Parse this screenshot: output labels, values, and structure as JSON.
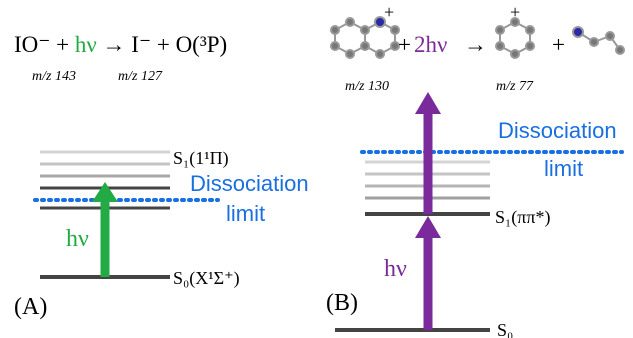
{
  "panel_a": {
    "equation": {
      "reactant": "IO⁻ + ",
      "photon": "hν",
      "products": " → I⁻ + O(³P)"
    },
    "reactant_mz": "m/z 143",
    "product_mz": "m/z 127",
    "excited_state": "S₁(1¹Π)",
    "dissociation": [
      "Dissociation",
      "limit"
    ],
    "photon_label": "hν",
    "ground_state": "S₀(X¹Σ⁺)",
    "panel_label": "(A)"
  },
  "panel_b": {
    "charge_1": "+",
    "plus_1": "+",
    "photons": "2hν",
    "arrow": "→",
    "charge_2": "+",
    "plus_2": "+",
    "reactant_mz": "m/z 130",
    "product_mz": "m/z 77",
    "dissociation": [
      "Dissociation",
      "limit"
    ],
    "excited_state": "S₁(ππ*)",
    "photon_label": "hν",
    "ground_state": "S₀",
    "panel_label": "(B)"
  }
}
